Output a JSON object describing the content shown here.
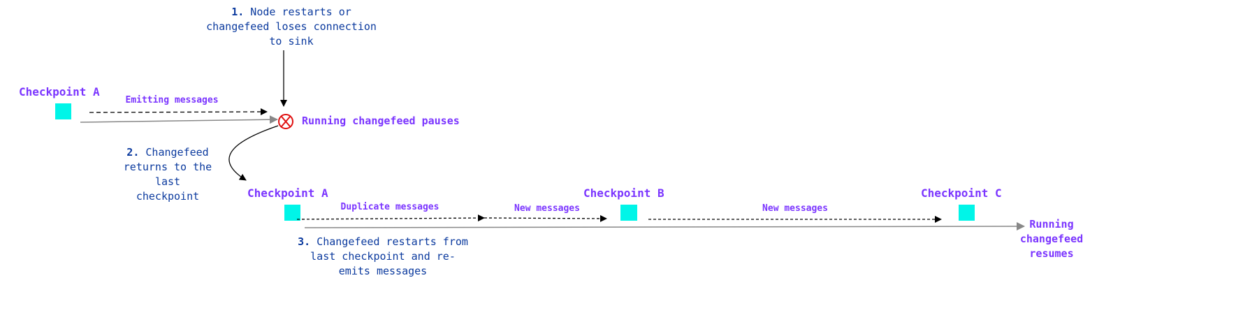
{
  "colors": {
    "label": "#7b35ff",
    "note": "#0b3a9e",
    "checkpoint": "#00f5e8",
    "error": "#e01010",
    "timeline": "#888888"
  },
  "notes": {
    "step1": {
      "num": "1.",
      "lines": [
        "Node restarts or",
        "changefeed loses connection",
        "to sink"
      ]
    },
    "step2": {
      "num": "2.",
      "lines": [
        "Changefeed",
        "returns to the",
        "last",
        "checkpoint"
      ]
    },
    "step3": {
      "num": "3.",
      "lines": [
        "Changefeed restarts from",
        "last checkpoint and re-",
        "emits messages"
      ]
    }
  },
  "checkpoints": {
    "a1": "Checkpoint A",
    "a2": "Checkpoint A",
    "b": "Checkpoint B",
    "c": "Checkpoint C"
  },
  "messages": {
    "emitting": "Emitting messages",
    "duplicate": "Duplicate messages",
    "new1": "New messages",
    "new2": "New messages"
  },
  "states": {
    "pauses": "Running changefeed pauses",
    "resumes": [
      "Running",
      "changefeed",
      "resumes"
    ]
  },
  "icons": {
    "error": "circle-x-icon"
  }
}
